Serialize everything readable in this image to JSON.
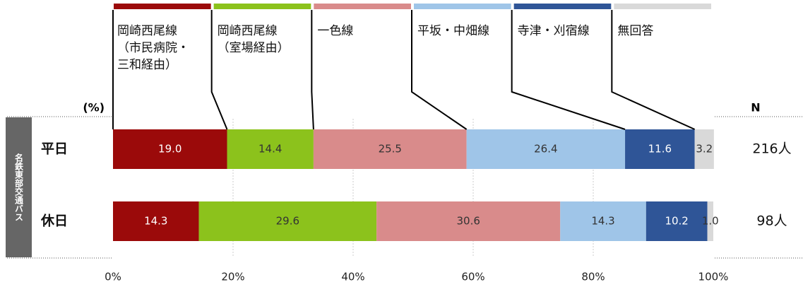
{
  "chart_data": {
    "type": "stacked_bar_horizontal",
    "group_label": "名鉄東部交通バス",
    "unit_label": "(%)",
    "n_header": "N",
    "categories": [
      "平日",
      "休日"
    ],
    "n_labels": [
      "216人",
      "98人"
    ],
    "series": [
      {
        "name": "岡崎西尾線\n（市民病院・\n三和経由）",
        "color": "#9b0a0a",
        "values": [
          19.0,
          14.3
        ],
        "value_labels": [
          "19.0",
          "14.3"
        ]
      },
      {
        "name": "岡崎西尾線\n（室場経由）",
        "color": "#8cc21c",
        "values": [
          14.4,
          29.6
        ],
        "value_labels": [
          "14.4",
          "29.6"
        ]
      },
      {
        "name": "一色線",
        "color": "#d98b8b",
        "values": [
          25.5,
          30.6
        ],
        "value_labels": [
          "25.5",
          "30.6"
        ]
      },
      {
        "name": "平坂・中畑線",
        "color": "#9fc5e8",
        "values": [
          26.4,
          14.3
        ],
        "value_labels": [
          "26.4",
          "14.3"
        ]
      },
      {
        "name": "寺津・刈宿線",
        "color": "#2f5597",
        "values": [
          11.6,
          10.2
        ],
        "value_labels": [
          "11.6",
          "10.2"
        ]
      },
      {
        "name": "無回答",
        "color": "#d9d9d9",
        "values": [
          3.2,
          1.0
        ],
        "value_labels": [
          "3.2",
          "1.0"
        ]
      }
    ],
    "xlim": [
      0,
      100
    ],
    "xticks": [
      {
        "value": 0,
        "label": "0%"
      },
      {
        "value": 20,
        "label": "20%"
      },
      {
        "value": 40,
        "label": "40%"
      },
      {
        "value": 60,
        "label": "60%"
      },
      {
        "value": 80,
        "label": "80%"
      },
      {
        "value": 100,
        "label": "100%"
      }
    ],
    "grid": true
  }
}
